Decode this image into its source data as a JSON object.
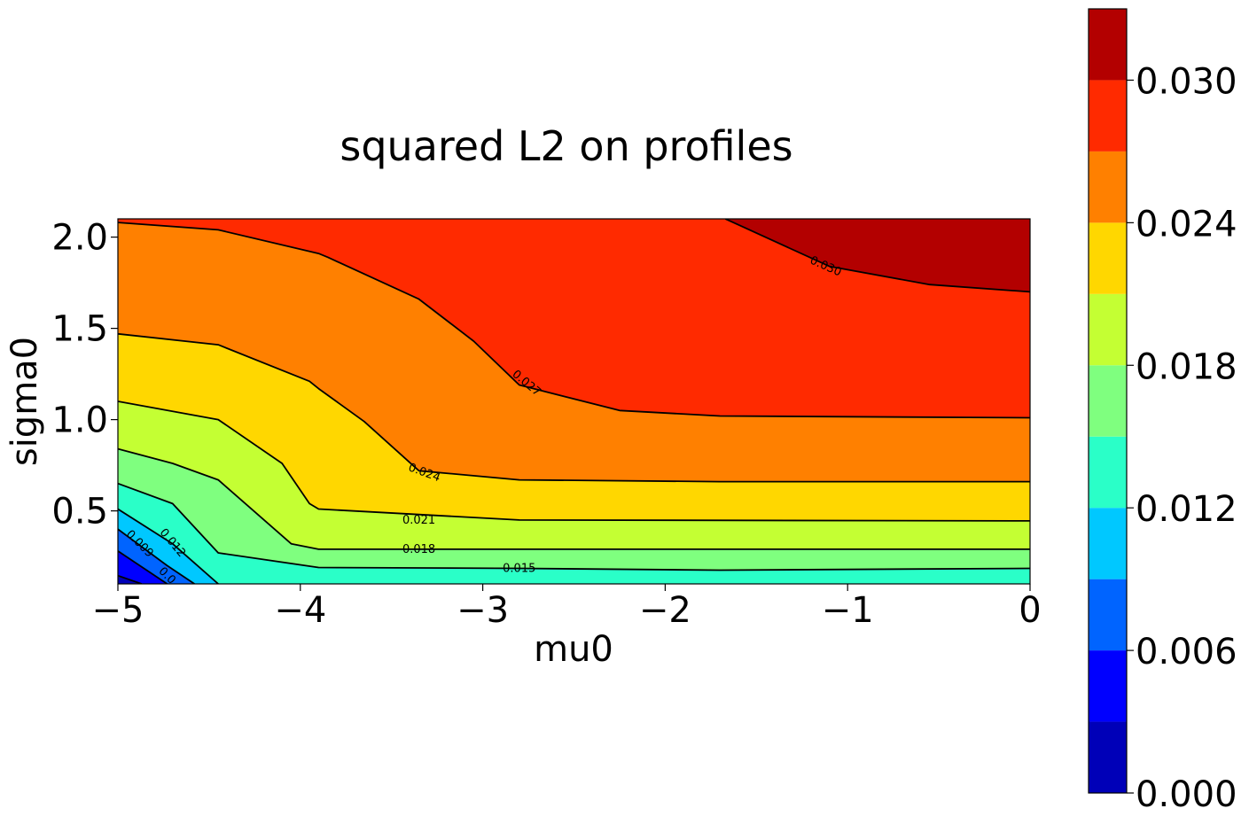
{
  "chart_data": {
    "type": "contourf",
    "title": "squared L2 on profiles",
    "xlabel": "mu0",
    "ylabel": "sigma0",
    "xlim": [
      -5,
      0
    ],
    "ylim": [
      0.1,
      2.1
    ],
    "x_ticks": [
      {
        "value": -5,
        "label": "−5"
      },
      {
        "value": -4,
        "label": "−4"
      },
      {
        "value": -3,
        "label": "−3"
      },
      {
        "value": -2,
        "label": "−2"
      },
      {
        "value": -1,
        "label": "−1"
      },
      {
        "value": 0,
        "label": "0"
      }
    ],
    "y_ticks": [
      {
        "value": 0.5,
        "label": "0.5"
      },
      {
        "value": 1.0,
        "label": "1.0"
      },
      {
        "value": 1.5,
        "label": "1.5"
      },
      {
        "value": 2.0,
        "label": "2.0"
      }
    ],
    "levels": [
      0.0,
      0.003,
      0.006,
      0.009,
      0.012,
      0.015,
      0.018,
      0.021,
      0.024,
      0.027,
      0.03,
      0.033
    ],
    "level_colors": [
      "#0000b8",
      "#0000ff",
      "#0064ff",
      "#00c8ff",
      "#2affc8",
      "#7fff7f",
      "#c4ff33",
      "#ffd700",
      "#ff8000",
      "#ff2a00",
      "#b30000"
    ],
    "colorbar_ticks": [
      {
        "value": 0.0,
        "label": "0.000"
      },
      {
        "value": 0.006,
        "label": "0.006"
      },
      {
        "value": 0.012,
        "label": "0.012"
      },
      {
        "value": 0.018,
        "label": "0.018"
      },
      {
        "value": 0.024,
        "label": "0.024"
      },
      {
        "value": 0.03,
        "label": "0.030"
      }
    ],
    "contour_lines": [
      {
        "level": 0.003,
        "points": [
          [
            -5,
            0.145
          ],
          [
            -4.87,
            0.1
          ]
        ]
      },
      {
        "level": 0.006,
        "points": [
          [
            -5,
            0.28
          ],
          [
            -4.73,
            0.1
          ]
        ]
      },
      {
        "level": 0.009,
        "points": [
          [
            -5,
            0.4
          ],
          [
            -4.73,
            0.2
          ],
          [
            -4.58,
            0.1
          ]
        ]
      },
      {
        "level": 0.012,
        "points": [
          [
            -5,
            0.51
          ],
          [
            -4.7,
            0.32
          ],
          [
            -4.45,
            0.1
          ]
        ]
      },
      {
        "level": 0.015,
        "points": [
          [
            -5,
            0.65
          ],
          [
            -4.7,
            0.54
          ],
          [
            -4.45,
            0.27
          ],
          [
            -3.9,
            0.19
          ],
          [
            -2.8,
            0.185
          ],
          [
            -1.7,
            0.175
          ],
          [
            0,
            0.185
          ]
        ]
      },
      {
        "level": 0.018,
        "points": [
          [
            -5,
            0.84
          ],
          [
            -4.7,
            0.76
          ],
          [
            -4.45,
            0.67
          ],
          [
            -4.05,
            0.32
          ],
          [
            -3.9,
            0.29
          ],
          [
            -2.8,
            0.29
          ],
          [
            0,
            0.29
          ]
        ]
      },
      {
        "level": 0.021,
        "points": [
          [
            -5,
            1.1
          ],
          [
            -4.45,
            1.0
          ],
          [
            -4.1,
            0.76
          ],
          [
            -3.95,
            0.54
          ],
          [
            -3.9,
            0.51
          ],
          [
            -2.8,
            0.45
          ],
          [
            0,
            0.445
          ]
        ]
      },
      {
        "level": 0.024,
        "points": [
          [
            -5,
            1.47
          ],
          [
            -4.45,
            1.41
          ],
          [
            -3.95,
            1.21
          ],
          [
            -3.9,
            1.17
          ],
          [
            -3.65,
            0.99
          ],
          [
            -3.35,
            0.72
          ],
          [
            -2.8,
            0.67
          ],
          [
            -1.7,
            0.66
          ],
          [
            0,
            0.66
          ]
        ]
      },
      {
        "level": 0.027,
        "points": [
          [
            -5,
            2.08
          ],
          [
            -4.45,
            2.04
          ],
          [
            -3.9,
            1.91
          ],
          [
            -3.85,
            1.89
          ],
          [
            -3.35,
            1.66
          ],
          [
            -3.05,
            1.43
          ],
          [
            -2.8,
            1.19
          ],
          [
            -2.25,
            1.05
          ],
          [
            -1.7,
            1.02
          ],
          [
            0,
            1.01
          ]
        ]
      },
      {
        "level": 0.03,
        "points": [
          [
            -1.67,
            2.1
          ],
          [
            -1.1,
            1.84
          ],
          [
            -0.55,
            1.74
          ],
          [
            0,
            1.7
          ]
        ]
      }
    ],
    "contour_labels": [
      {
        "text": "0.030",
        "at": [
          -1.12,
          1.84
        ],
        "angle": 24
      },
      {
        "text": "0.027",
        "at": [
          -2.76,
          1.2
        ],
        "angle": 40
      },
      {
        "text": "0.024",
        "at": [
          -3.32,
          0.71
        ],
        "angle": 20
      },
      {
        "text": "0.021",
        "at": [
          -3.35,
          0.45
        ],
        "angle": 0
      },
      {
        "text": "0.018",
        "at": [
          -3.35,
          0.29
        ],
        "angle": 0
      },
      {
        "text": "0.015",
        "at": [
          -2.8,
          0.185
        ],
        "angle": 0
      },
      {
        "text": "0.012",
        "at": [
          -4.7,
          0.325
        ],
        "angle": 50
      },
      {
        "text": "0.009",
        "at": [
          -4.88,
          0.32
        ],
        "angle": 45
      },
      {
        "text": "0.0",
        "at": [
          -4.73,
          0.145
        ],
        "angle": 45
      }
    ]
  }
}
